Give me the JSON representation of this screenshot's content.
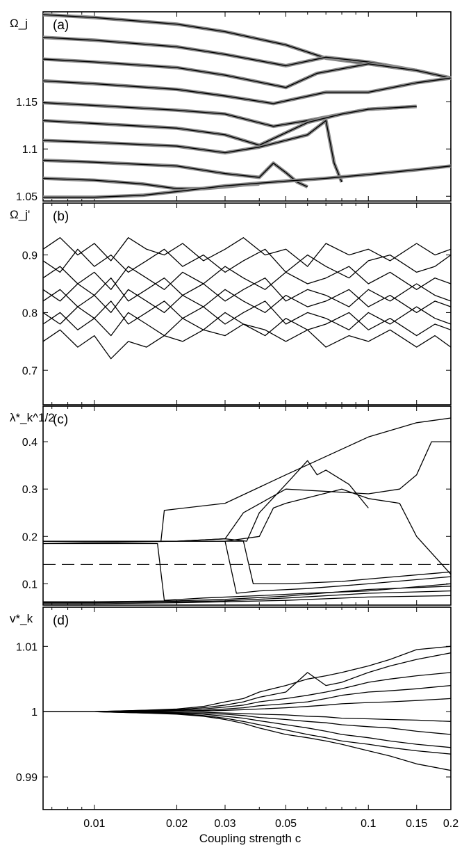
{
  "xlabel": "Coupling strength c",
  "x_ticks": [
    {
      "value": 0.01,
      "label": "0.01"
    },
    {
      "value": 0.02,
      "label": "0.02"
    },
    {
      "value": 0.03,
      "label": "0.03"
    },
    {
      "value": 0.05,
      "label": "0.05"
    },
    {
      "value": 0.1,
      "label": "0.1"
    },
    {
      "value": 0.15,
      "label": "0.15"
    },
    {
      "value": 0.2,
      "label": "0.2"
    }
  ],
  "chart_data": [
    {
      "type": "line",
      "panel_label": "(a)",
      "ylabel": "Ω_j",
      "xscale": "log",
      "xlim": [
        0.0065,
        0.2
      ],
      "ylim": [
        1.045,
        1.245
      ],
      "yticks": [
        {
          "value": 1.05,
          "label": "1.05"
        },
        {
          "value": 1.1,
          "label": "1.1"
        },
        {
          "value": 1.15,
          "label": "1.15"
        }
      ],
      "series": [
        {
          "x": [
            0.0065,
            0.01,
            0.02,
            0.03,
            0.05,
            0.07,
            0.1,
            0.15,
            0.2
          ],
          "values": [
            1.242,
            1.239,
            1.232,
            1.224,
            1.21,
            1.196,
            1.19,
            1.183,
            1.175
          ]
        },
        {
          "x": [
            0.0065,
            0.01,
            0.02,
            0.03,
            0.05,
            0.07,
            0.1,
            0.15,
            0.2
          ],
          "values": [
            1.218,
            1.215,
            1.208,
            1.2,
            1.188,
            1.197,
            1.192,
            1.183,
            1.175
          ]
        },
        {
          "x": [
            0.0065,
            0.01,
            0.02,
            0.03,
            0.05,
            0.065,
            0.1,
            0.15,
            0.2
          ],
          "values": [
            1.195,
            1.192,
            1.186,
            1.178,
            1.165,
            1.18,
            1.19,
            1.183,
            1.175
          ]
        },
        {
          "x": [
            0.0065,
            0.01,
            0.02,
            0.03,
            0.045,
            0.07,
            0.1,
            0.15,
            0.2
          ],
          "values": [
            1.172,
            1.169,
            1.163,
            1.156,
            1.148,
            1.16,
            1.16,
            1.17,
            1.175
          ]
        },
        {
          "x": [
            0.0065,
            0.01,
            0.02,
            0.03,
            0.045,
            0.06,
            0.08,
            0.1,
            0.15
          ],
          "values": [
            1.149,
            1.146,
            1.141,
            1.137,
            1.124,
            1.13,
            1.137,
            1.142,
            1.145
          ]
        },
        {
          "x": [
            0.0065,
            0.01,
            0.02,
            0.03,
            0.04,
            0.06,
            0.08,
            0.1,
            0.15
          ],
          "values": [
            1.13,
            1.127,
            1.122,
            1.115,
            1.104,
            1.128,
            1.137,
            1.142,
            1.145
          ]
        },
        {
          "x": [
            0.0065,
            0.01,
            0.02,
            0.03,
            0.04,
            0.06,
            0.07,
            0.075,
            0.08
          ],
          "values": [
            1.109,
            1.107,
            1.103,
            1.096,
            1.102,
            1.115,
            1.13,
            1.085,
            1.065
          ]
        },
        {
          "x": [
            0.0065,
            0.01,
            0.02,
            0.03,
            0.04,
            0.045,
            0.05,
            0.055,
            0.06
          ],
          "values": [
            1.088,
            1.086,
            1.082,
            1.074,
            1.07,
            1.085,
            1.075,
            1.065,
            1.06
          ]
        },
        {
          "x": [
            0.0065,
            0.01,
            0.015,
            0.02,
            0.025,
            0.03,
            0.035,
            0.04
          ],
          "values": [
            1.069,
            1.067,
            1.063,
            1.058,
            1.058,
            1.06,
            1.062,
            1.063
          ]
        },
        {
          "x": [
            0.0065,
            0.01,
            0.015,
            0.02,
            0.03,
            0.05,
            0.07,
            0.1,
            0.15,
            0.2
          ],
          "values": [
            1.049,
            1.049,
            1.051,
            1.055,
            1.061,
            1.066,
            1.069,
            1.073,
            1.078,
            1.082
          ]
        }
      ]
    },
    {
      "type": "line",
      "panel_label": "(b)",
      "ylabel": "Ω_j'",
      "xscale": "log",
      "xlim": [
        0.0065,
        0.2
      ],
      "ylim": [
        0.64,
        0.99
      ],
      "yticks": [
        {
          "value": 0.7,
          "label": "0.7"
        },
        {
          "value": 0.8,
          "label": "0.8"
        },
        {
          "value": 0.9,
          "label": "0.9"
        }
      ],
      "x": [
        0.0065,
        0.0075,
        0.0087,
        0.01,
        0.0115,
        0.0133,
        0.0155,
        0.018,
        0.021,
        0.025,
        0.03,
        0.035,
        0.042,
        0.05,
        0.06,
        0.07,
        0.085,
        0.1,
        0.12,
        0.15,
        0.175,
        0.2
      ],
      "series": [
        {
          "values": [
            0.91,
            0.93,
            0.9,
            0.92,
            0.89,
            0.93,
            0.91,
            0.9,
            0.92,
            0.89,
            0.91,
            0.93,
            0.9,
            0.91,
            0.88,
            0.92,
            0.9,
            0.91,
            0.89,
            0.92,
            0.9,
            0.91
          ]
        },
        {
          "values": [
            0.89,
            0.87,
            0.91,
            0.88,
            0.9,
            0.87,
            0.89,
            0.91,
            0.88,
            0.9,
            0.87,
            0.89,
            0.91,
            0.87,
            0.9,
            0.88,
            0.86,
            0.89,
            0.9,
            0.87,
            0.88,
            0.9
          ]
        },
        {
          "values": [
            0.86,
            0.88,
            0.85,
            0.87,
            0.84,
            0.88,
            0.86,
            0.84,
            0.87,
            0.85,
            0.88,
            0.86,
            0.84,
            0.87,
            0.85,
            0.86,
            0.88,
            0.85,
            0.87,
            0.84,
            0.86,
            0.85
          ]
        },
        {
          "values": [
            0.84,
            0.82,
            0.85,
            0.83,
            0.86,
            0.82,
            0.84,
            0.86,
            0.83,
            0.85,
            0.82,
            0.84,
            0.86,
            0.82,
            0.84,
            0.83,
            0.81,
            0.84,
            0.82,
            0.85,
            0.83,
            0.82
          ]
        },
        {
          "values": [
            0.82,
            0.84,
            0.81,
            0.83,
            0.8,
            0.84,
            0.82,
            0.8,
            0.83,
            0.81,
            0.84,
            0.82,
            0.8,
            0.83,
            0.81,
            0.82,
            0.84,
            0.81,
            0.83,
            0.8,
            0.82,
            0.81
          ]
        },
        {
          "values": [
            0.8,
            0.78,
            0.81,
            0.79,
            0.82,
            0.78,
            0.8,
            0.82,
            0.79,
            0.81,
            0.78,
            0.8,
            0.82,
            0.78,
            0.8,
            0.79,
            0.77,
            0.8,
            0.78,
            0.81,
            0.79,
            0.78
          ]
        },
        {
          "values": [
            0.78,
            0.8,
            0.77,
            0.79,
            0.76,
            0.8,
            0.78,
            0.76,
            0.79,
            0.77,
            0.8,
            0.78,
            0.76,
            0.79,
            0.77,
            0.78,
            0.8,
            0.77,
            0.79,
            0.76,
            0.78,
            0.77
          ]
        },
        {
          "values": [
            0.75,
            0.77,
            0.74,
            0.76,
            0.72,
            0.75,
            0.74,
            0.76,
            0.75,
            0.77,
            0.76,
            0.78,
            0.77,
            0.75,
            0.77,
            0.74,
            0.76,
            0.75,
            0.77,
            0.74,
            0.76,
            0.74
          ]
        }
      ]
    },
    {
      "type": "line",
      "panel_label": "(c)",
      "ylabel": "λ*_k^1/2",
      "xscale": "log",
      "xlim": [
        0.0065,
        0.2
      ],
      "ylim": [
        0.055,
        0.475
      ],
      "yticks": [
        {
          "value": 0.1,
          "label": "0.1"
        },
        {
          "value": 0.2,
          "label": "0.2"
        },
        {
          "value": 0.3,
          "label": "0.3"
        },
        {
          "value": 0.4,
          "label": "0.4"
        }
      ],
      "threshold": 0.141,
      "series": [
        {
          "x": [
            0.0065,
            0.015,
            0.0175,
            0.018,
            0.03,
            0.05,
            0.1,
            0.15,
            0.2
          ],
          "values": [
            0.19,
            0.19,
            0.19,
            0.255,
            0.27,
            0.33,
            0.41,
            0.44,
            0.45
          ]
        },
        {
          "x": [
            0.0065,
            0.02,
            0.03,
            0.035,
            0.05,
            0.1,
            0.13,
            0.15,
            0.17,
            0.2
          ],
          "values": [
            0.185,
            0.19,
            0.195,
            0.25,
            0.3,
            0.29,
            0.3,
            0.33,
            0.4,
            0.4
          ]
        },
        {
          "x": [
            0.0065,
            0.02,
            0.03,
            0.036,
            0.04,
            0.05,
            0.06,
            0.065,
            0.07,
            0.085,
            0.1
          ],
          "values": [
            0.19,
            0.19,
            0.195,
            0.19,
            0.25,
            0.31,
            0.36,
            0.33,
            0.34,
            0.31,
            0.26
          ]
        },
        {
          "x": [
            0.0065,
            0.02,
            0.03,
            0.04,
            0.045,
            0.05,
            0.08,
            0.1,
            0.13,
            0.15,
            0.2
          ],
          "values": [
            0.19,
            0.19,
            0.19,
            0.2,
            0.26,
            0.27,
            0.3,
            0.28,
            0.27,
            0.2,
            0.12
          ]
        },
        {
          "x": [
            0.0065,
            0.017,
            0.018,
            0.025,
            0.04,
            0.06,
            0.1,
            0.2
          ],
          "values": [
            0.185,
            0.185,
            0.065,
            0.07,
            0.075,
            0.08,
            0.085,
            0.1
          ]
        },
        {
          "x": [
            0.0065,
            0.025,
            0.03,
            0.033,
            0.04,
            0.06,
            0.1,
            0.2
          ],
          "values": [
            0.19,
            0.19,
            0.19,
            0.08,
            0.085,
            0.09,
            0.1,
            0.115
          ]
        },
        {
          "x": [
            0.0065,
            0.03,
            0.035,
            0.038,
            0.05,
            0.08,
            0.1,
            0.2
          ],
          "values": [
            0.19,
            0.19,
            0.19,
            0.1,
            0.1,
            0.105,
            0.11,
            0.125
          ]
        },
        {
          "x": [
            0.0065,
            0.01,
            0.02,
            0.03,
            0.05,
            0.1,
            0.2
          ],
          "values": [
            0.06,
            0.06,
            0.062,
            0.064,
            0.07,
            0.08,
            0.085
          ]
        },
        {
          "x": [
            0.0065,
            0.01,
            0.02,
            0.03,
            0.05,
            0.1,
            0.2
          ],
          "values": [
            0.058,
            0.058,
            0.06,
            0.062,
            0.065,
            0.072,
            0.075
          ]
        },
        {
          "x": [
            0.0065,
            0.01,
            0.02,
            0.03,
            0.05,
            0.1,
            0.2
          ],
          "values": [
            0.062,
            0.062,
            0.064,
            0.067,
            0.074,
            0.088,
            0.095
          ]
        }
      ]
    },
    {
      "type": "line",
      "panel_label": "(d)",
      "ylabel": "v*_k",
      "xscale": "log",
      "xlim": [
        0.0065,
        0.2
      ],
      "ylim": [
        0.985,
        1.016
      ],
      "yticks": [
        {
          "value": 0.99,
          "label": "0.99"
        },
        {
          "value": 1,
          "label": "1"
        },
        {
          "value": 1.01,
          "label": "1.01"
        }
      ],
      "x": [
        0.0065,
        0.01,
        0.015,
        0.02,
        0.025,
        0.03,
        0.035,
        0.04,
        0.05,
        0.06,
        0.07,
        0.08,
        0.1,
        0.12,
        0.15,
        0.2
      ],
      "series": [
        {
          "values": [
            1,
            1,
            1.0002,
            1.0004,
            1.0008,
            1.0015,
            1.002,
            1.003,
            1.004,
            1.005,
            1.0055,
            1.006,
            1.007,
            1.008,
            1.0095,
            1.01
          ]
        },
        {
          "values": [
            1,
            1,
            1.0002,
            1.0003,
            1.0006,
            1.001,
            1.0015,
            1.0022,
            1.003,
            1.006,
            1.004,
            1.0045,
            1.006,
            1.007,
            1.008,
            1.009
          ]
        },
        {
          "values": [
            1,
            1,
            1.0001,
            1.0002,
            1.0004,
            1.0007,
            1.001,
            1.0015,
            1.002,
            1.0025,
            1.003,
            1.0035,
            1.0045,
            1.005,
            1.0055,
            1.006
          ]
        },
        {
          "values": [
            1,
            1,
            1.0001,
            1.0001,
            1.0002,
            1.0004,
            1.0006,
            1.0009,
            1.0012,
            1.0015,
            1.002,
            1.0025,
            1.003,
            1.0032,
            1.0035,
            1.004
          ]
        },
        {
          "values": [
            1,
            1,
            1,
            1.0001,
            1.0001,
            1.0002,
            1.0003,
            1.0004,
            1.0006,
            1.0008,
            1.001,
            1.0012,
            1.0014,
            1.0015,
            1.0017,
            1.002
          ]
        },
        {
          "values": [
            1,
            1,
            1,
            0.9999,
            0.9999,
            0.9998,
            0.9997,
            0.9996,
            0.9995,
            0.9993,
            0.9992,
            0.999,
            0.9989,
            0.9988,
            0.9987,
            0.9985
          ]
        },
        {
          "values": [
            1,
            1,
            0.9999,
            0.9998,
            0.9997,
            0.9996,
            0.9994,
            0.9991,
            0.9988,
            0.9985,
            0.9983,
            0.998,
            0.9977,
            0.9975,
            0.997,
            0.9965
          ]
        },
        {
          "values": [
            1,
            1,
            0.9999,
            0.9998,
            0.9996,
            0.9993,
            0.999,
            0.9986,
            0.998,
            0.9975,
            0.997,
            0.9965,
            0.996,
            0.9955,
            0.995,
            0.9945
          ]
        },
        {
          "values": [
            1,
            1,
            0.9998,
            0.9997,
            0.9994,
            0.999,
            0.9985,
            0.998,
            0.9972,
            0.9965,
            0.996,
            0.9955,
            0.995,
            0.9945,
            0.994,
            0.9935
          ]
        },
        {
          "values": [
            1,
            1,
            0.9998,
            0.9996,
            0.9993,
            0.9988,
            0.9982,
            0.9975,
            0.9965,
            0.996,
            0.9955,
            0.995,
            0.994,
            0.9932,
            0.992,
            0.991
          ]
        }
      ]
    }
  ]
}
